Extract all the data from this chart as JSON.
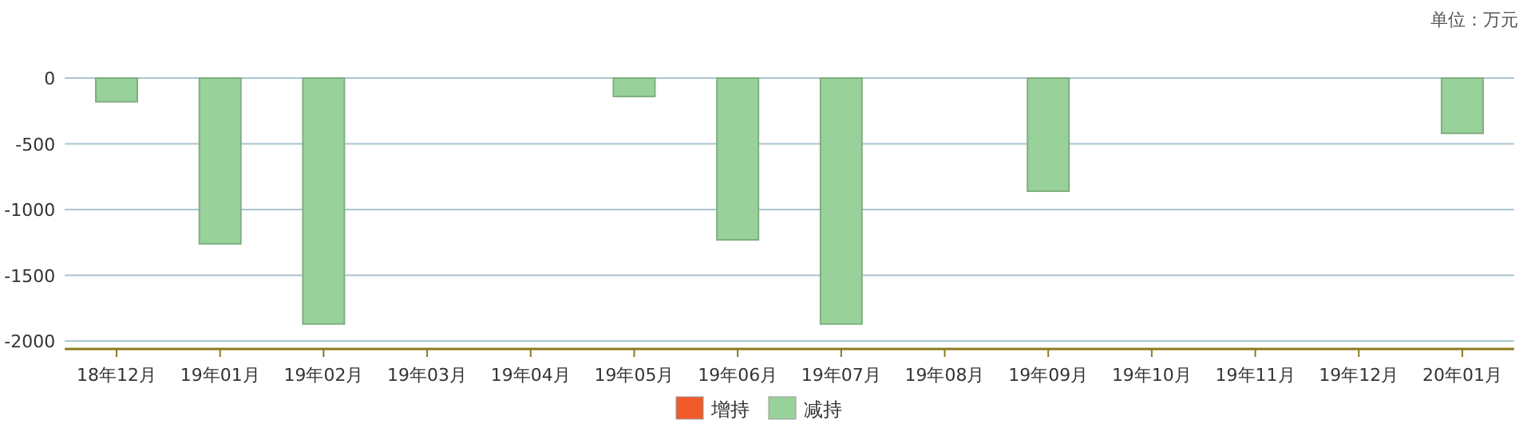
{
  "chart_data": {
    "type": "bar",
    "categories": [
      "18年12月",
      "19年01月",
      "19年02月",
      "19年03月",
      "19年04月",
      "19年05月",
      "19年06月",
      "19年07月",
      "19年08月",
      "19年09月",
      "19年10月",
      "19年11月",
      "19年12月",
      "20年01月"
    ],
    "series": [
      {
        "name": "增持",
        "color": "#f15a2b",
        "values": [
          null,
          null,
          null,
          null,
          null,
          null,
          null,
          null,
          null,
          null,
          null,
          null,
          null,
          null
        ]
      },
      {
        "name": "减持",
        "color": "#99d19b",
        "values": [
          -180,
          -1260,
          -1870,
          null,
          null,
          -140,
          -1230,
          -1870,
          null,
          -860,
          null,
          null,
          null,
          -420
        ]
      }
    ],
    "ylim": [
      -2060,
      0
    ],
    "yticks": [
      0,
      -500,
      -1000,
      -1500,
      -2000
    ],
    "grid": "y",
    "legend": "bottom",
    "annotations": [
      "单位：万元"
    ]
  }
}
